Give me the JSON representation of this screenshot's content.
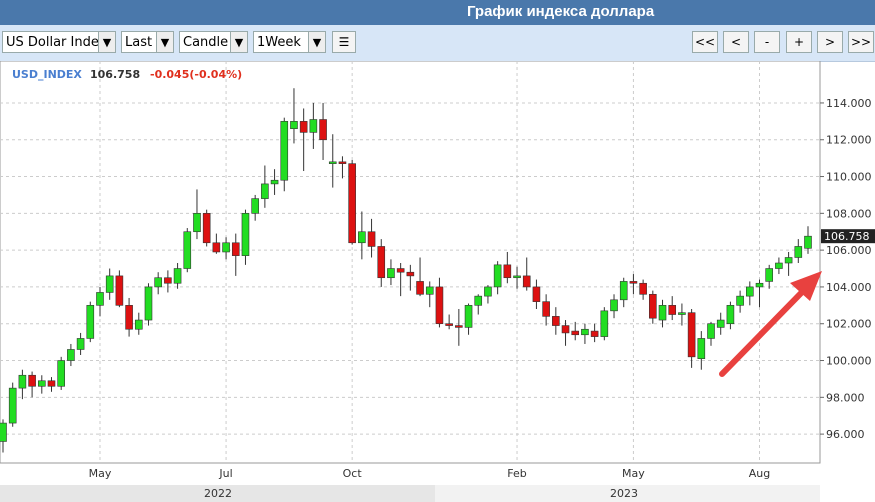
{
  "header": {
    "title": "График индекса доллара"
  },
  "toolbar": {
    "symbol": "US Dollar Inde",
    "price": "Last",
    "chart_type": "Candle",
    "period": "1Week",
    "buttons": [
      "<<",
      "<",
      "-",
      "+",
      ">",
      ">>"
    ]
  },
  "chart_data": {
    "type": "candlestick",
    "series_name": "USD_INDEX",
    "change_label": "-0.045(-0.04%)",
    "up_color": "#22dd22",
    "down_color": "#dd1111",
    "grid": true,
    "year_labels": [
      "2022",
      "2023"
    ],
    "categories": [
      null,
      null,
      null,
      null,
      null,
      null,
      null,
      null,
      null,
      null,
      "May",
      null,
      null,
      null,
      null,
      null,
      null,
      null,
      null,
      null,
      null,
      null,
      null,
      "Jul",
      null,
      null,
      null,
      null,
      null,
      null,
      null,
      null,
      null,
      null,
      null,
      null,
      "Oct",
      null,
      null,
      null,
      null,
      null,
      null,
      null,
      null,
      null,
      null,
      null,
      null,
      null,
      null,
      null,
      null,
      "Feb",
      null,
      null,
      null,
      null,
      null,
      null,
      null,
      null,
      null,
      null,
      null,
      "May",
      null,
      null,
      null,
      null,
      null,
      null,
      null,
      null,
      null,
      null,
      null,
      null,
      "Aug",
      null,
      null,
      null,
      null,
      null
    ],
    "open": [
      95.6,
      96.6,
      98.5,
      99.2,
      98.6,
      98.9,
      98.6,
      100.0,
      100.6,
      101.2,
      103.0,
      103.7,
      104.6,
      103.0,
      101.7,
      102.2,
      104.0,
      104.5,
      104.2,
      105.0,
      107.0,
      108.0,
      106.4,
      105.9,
      106.4,
      105.7,
      108.0,
      108.8,
      109.6,
      109.8,
      112.6,
      113.0,
      112.4,
      113.1,
      110.7,
      110.8,
      110.7,
      106.4,
      107.0,
      106.2,
      104.5,
      105.0,
      104.8,
      104.3,
      103.6,
      104.0,
      102.0,
      101.9,
      101.8,
      103.0,
      103.5,
      104.0,
      105.2,
      104.5,
      104.6,
      104.0,
      103.2,
      102.4,
      101.9,
      101.6,
      101.4,
      101.6,
      101.3,
      102.7,
      103.3,
      104.3,
      104.2,
      103.6,
      102.2,
      103.0,
      102.5,
      102.6,
      100.1,
      101.2,
      101.8,
      102.0,
      103.0,
      103.5,
      104.0,
      104.3,
      105.0,
      105.3,
      105.6,
      106.1
    ],
    "high": [
      96.8,
      98.8,
      99.5,
      99.4,
      99.2,
      99.1,
      100.2,
      100.9,
      101.5,
      103.2,
      104.0,
      105.0,
      104.9,
      103.4,
      102.6,
      104.2,
      104.8,
      104.9,
      105.3,
      107.2,
      109.3,
      108.2,
      106.9,
      106.7,
      106.9,
      108.2,
      109.0,
      110.6,
      110.4,
      113.2,
      114.8,
      113.7,
      114.0,
      114.0,
      112.3,
      111.1,
      110.9,
      108.1,
      107.7,
      106.6,
      105.5,
      105.3,
      105.2,
      105.6,
      104.3,
      104.5,
      102.5,
      102.8,
      103.1,
      103.6,
      104.1,
      105.4,
      105.9,
      105.1,
      105.6,
      104.4,
      103.6,
      102.9,
      102.2,
      102.1,
      102.0,
      102.0,
      102.9,
      103.6,
      104.5,
      104.7,
      104.4,
      103.8,
      103.3,
      103.5,
      103.1,
      102.8,
      101.6,
      102.1,
      102.6,
      103.2,
      103.8,
      104.3,
      104.4,
      105.2,
      105.6,
      105.9,
      106.6,
      107.3
    ],
    "low": [
      95.0,
      96.4,
      97.9,
      98.0,
      98.2,
      98.3,
      98.4,
      99.7,
      100.3,
      101.0,
      102.4,
      103.3,
      102.9,
      101.3,
      101.4,
      101.9,
      103.6,
      103.7,
      103.9,
      104.8,
      106.6,
      106.2,
      105.8,
      105.5,
      104.6,
      105.2,
      107.6,
      108.3,
      109.0,
      109.2,
      111.8,
      110.3,
      111.5,
      110.9,
      109.4,
      109.9,
      106.3,
      105.5,
      105.6,
      104.0,
      104.1,
      103.5,
      103.8,
      103.5,
      102.9,
      101.8,
      101.7,
      100.8,
      101.4,
      102.5,
      103.1,
      103.6,
      104.2,
      103.9,
      103.8,
      102.8,
      101.9,
      101.4,
      100.8,
      101.1,
      100.9,
      101.0,
      101.1,
      102.3,
      102.9,
      103.6,
      103.3,
      102.0,
      101.8,
      102.2,
      101.9,
      99.6,
      99.5,
      100.8,
      101.4,
      101.7,
      102.6,
      103.0,
      102.9,
      103.9,
      104.7,
      104.6,
      105.3,
      105.8
    ],
    "close": [
      96.6,
      98.5,
      99.2,
      98.6,
      98.9,
      98.6,
      100.0,
      100.6,
      101.2,
      103.0,
      103.7,
      104.6,
      103.0,
      101.7,
      102.2,
      104.0,
      104.5,
      104.2,
      105.0,
      107.0,
      108.0,
      106.4,
      105.9,
      106.4,
      105.7,
      108.0,
      108.8,
      109.6,
      109.8,
      113.0,
      113.0,
      112.4,
      113.1,
      112.0,
      110.8,
      110.7,
      106.4,
      107.0,
      106.2,
      104.5,
      105.0,
      104.8,
      104.6,
      103.6,
      104.0,
      102.0,
      101.9,
      101.8,
      103.0,
      103.5,
      104.0,
      105.2,
      104.5,
      104.6,
      104.0,
      103.2,
      102.4,
      101.9,
      101.5,
      101.4,
      101.7,
      101.3,
      102.7,
      103.3,
      104.3,
      104.2,
      103.6,
      102.3,
      103.0,
      102.5,
      102.6,
      100.2,
      101.2,
      102.0,
      102.2,
      103.0,
      103.5,
      104.0,
      104.2,
      105.0,
      105.3,
      105.6,
      106.2,
      106.758
    ],
    "ylim": [
      94.43,
      116.28
    ],
    "yticks": [
      {
        "value": 96,
        "label": "96.000"
      },
      {
        "value": 98,
        "label": "98.000"
      },
      {
        "value": 100,
        "label": "100.000"
      },
      {
        "value": 102,
        "label": "102.000"
      },
      {
        "value": 104,
        "label": "104.000"
      },
      {
        "value": 106,
        "label": "106.000"
      },
      {
        "value": 108,
        "label": "108.000"
      },
      {
        "value": 110,
        "label": "110.000"
      },
      {
        "value": 112,
        "label": "112.000"
      },
      {
        "value": 114,
        "label": "114.000"
      }
    ]
  }
}
